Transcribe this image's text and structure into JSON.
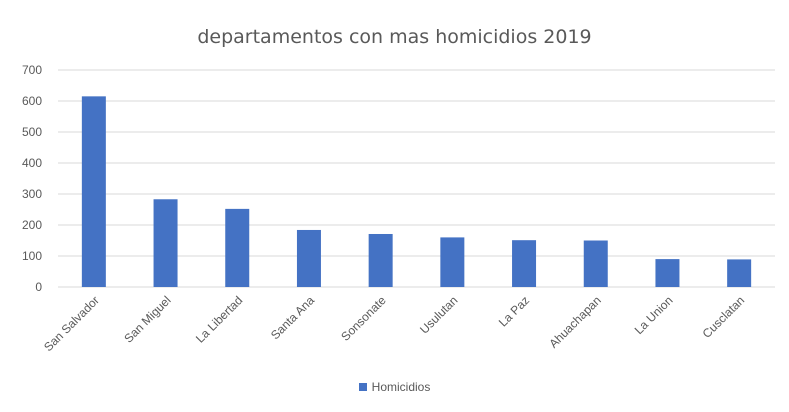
{
  "chart_data": {
    "type": "bar",
    "title": "departamentos con mas homicidios 2019",
    "categories": [
      "San Salvador",
      "San Miguel",
      "La Libertad",
      "Santa Ana",
      "Sonsonate",
      "Usulutan",
      "La Paz",
      "Ahuachapan",
      "La Union",
      "Cusclatan"
    ],
    "series": [
      {
        "name": "Homicidios",
        "values": [
          615,
          283,
          252,
          184,
          171,
          160,
          151,
          150,
          90,
          89
        ]
      }
    ],
    "ylim": [
      0,
      700
    ],
    "yticks": [
      0,
      100,
      200,
      300,
      400,
      500,
      600,
      700
    ],
    "grid": true,
    "legend_position": "bottom",
    "bar_color": "#4472C4"
  }
}
